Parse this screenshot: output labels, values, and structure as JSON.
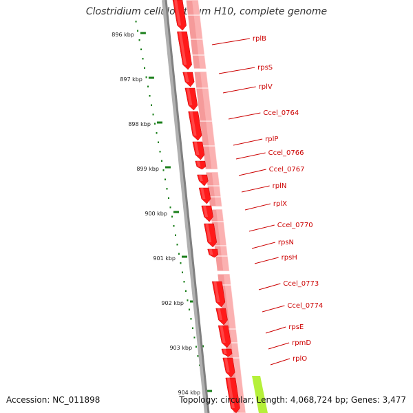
{
  "title": "Clostridium cellulolyticum H10, complete genome",
  "footer": {
    "accession": "Accession: NC_011898",
    "summary": "Topology: circular; Length: 4,068,724 bp; Genes: 3,477"
  },
  "colors": {
    "cds": "#ff1a1a",
    "cds_dark": "#c80000",
    "gene_band": "#f59a9a",
    "gene_band_light": "#ffc2c2",
    "backbone": "#808080",
    "tick": "#1a7f1a",
    "label": "#cc0000",
    "leader": "#cc0000",
    "highlight": "#b5f03a"
  },
  "ruler": {
    "unit": "kbp",
    "ticks": [
      "896 kbp",
      "897 kbp",
      "898 kbp",
      "899 kbp",
      "900 kbp",
      "901 kbp",
      "902 kbp",
      "903 kbp",
      "904 kbp"
    ]
  },
  "genes": [
    "rplB",
    "rpsS",
    "rplV",
    "Ccel_0764",
    "rplP",
    "Ccel_0766",
    "Ccel_0767",
    "rplN",
    "rplX",
    "Ccel_0770",
    "rpsN",
    "rpsH",
    "Ccel_0773",
    "Ccel_0774",
    "rpsE",
    "rpmD",
    "rplO"
  ]
}
